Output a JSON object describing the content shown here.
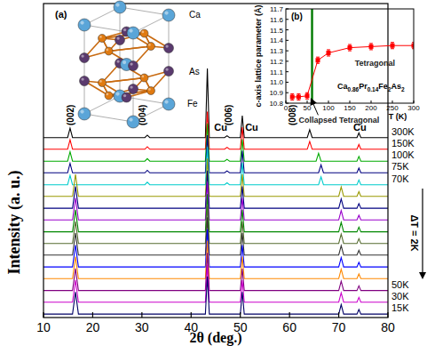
{
  "chart_data": [
    {
      "type": "line",
      "xlabel": "2θ (deg.)",
      "ylabel": "Intensity (a. u.)",
      "tick_labels": "x",
      "xlim": [
        10,
        80
      ],
      "xticks": [
        10,
        20,
        30,
        40,
        50,
        60,
        70,
        80
      ],
      "ylim": [
        0,
        100
      ],
      "x": [
        10,
        14.9,
        15.4,
        15.9,
        16.5,
        17.1,
        30.6,
        31.1,
        31.6,
        42.9,
        43.3,
        43.7,
        46.8,
        47.3,
        47.8,
        50.0,
        50.4,
        50.8,
        63.6,
        64.1,
        64.6,
        65.4,
        65.9,
        66.4,
        66.9,
        70.0,
        70.5,
        71.0,
        73.7,
        74.1,
        74.5,
        80
      ],
      "series": [
        {
          "name": "300K",
          "color": "#000000",
          "values": [
            57.3,
            57.3,
            60.3,
            57.3,
            57.3,
            57.3,
            57.3,
            58.1,
            57.3,
            57.3,
            79.3,
            57.3,
            57.3,
            57.9,
            57.3,
            57.3,
            64.3,
            57.3,
            57.3,
            59.8,
            57.3,
            57.3,
            57.3,
            57.3,
            57.3,
            57.3,
            57.3,
            57.3,
            57.3,
            58.8,
            57.3,
            57.3
          ]
        },
        {
          "name": "150K",
          "color": "#ff0000",
          "values": [
            53.6,
            53.6,
            56.6,
            53.6,
            53.6,
            53.6,
            53.6,
            54.4,
            53.6,
            53.6,
            65.6,
            53.6,
            53.6,
            54.2,
            53.6,
            53.6,
            60.6,
            53.6,
            53.6,
            56.1,
            53.6,
            53.6,
            53.6,
            53.6,
            53.6,
            53.6,
            53.6,
            53.6,
            53.6,
            55.1,
            53.6,
            53.6
          ]
        },
        {
          "name": "100K",
          "color": "#00aa00",
          "values": [
            49.8,
            49.8,
            52.8,
            49.8,
            49.8,
            49.8,
            49.8,
            50.6,
            49.8,
            49.8,
            61.8,
            49.8,
            49.8,
            50.4,
            49.8,
            49.8,
            56.8,
            49.8,
            49.8,
            49.8,
            49.8,
            49.8,
            52.3,
            49.8,
            49.8,
            49.8,
            49.8,
            49.8,
            49.8,
            51.3,
            49.8,
            49.8
          ]
        },
        {
          "name": "75K",
          "color": "#000080",
          "values": [
            46.1,
            46.1,
            49.1,
            46.1,
            46.1,
            46.1,
            46.1,
            46.9,
            46.1,
            46.1,
            58.1,
            46.1,
            46.1,
            46.7,
            46.1,
            46.1,
            53.1,
            46.1,
            46.1,
            46.1,
            46.1,
            46.1,
            46.1,
            48.6,
            46.1,
            46.1,
            46.1,
            46.1,
            46.1,
            47.6,
            46.1,
            46.1
          ]
        },
        {
          "name": "70K",
          "color": "#00cccc",
          "values": [
            42.3,
            42.3,
            45.3,
            42.3,
            42.3,
            42.3,
            42.3,
            43.1,
            42.3,
            42.3,
            54.3,
            42.3,
            42.3,
            42.9,
            42.3,
            42.3,
            49.3,
            42.3,
            42.3,
            42.3,
            42.3,
            42.3,
            42.3,
            44.8,
            42.3,
            42.3,
            42.3,
            42.3,
            42.3,
            43.8,
            42.3,
            42.3
          ]
        },
        {
          "color": "#999900",
          "values": [
            38.6,
            38.6,
            38.6,
            38.6,
            45.6,
            38.6,
            38.6,
            38.6,
            38.6,
            38.6,
            50.6,
            38.6,
            38.6,
            38.6,
            38.6,
            38.6,
            45.6,
            38.6,
            38.6,
            38.6,
            38.6,
            38.6,
            38.6,
            38.6,
            38.6,
            38.6,
            41.6,
            38.6,
            38.6,
            40.1,
            38.6,
            38.6
          ]
        },
        {
          "color": "#000080",
          "values": [
            34.8,
            34.8,
            34.8,
            34.8,
            41.8,
            34.8,
            34.8,
            34.8,
            34.8,
            34.8,
            46.8,
            34.8,
            34.8,
            34.8,
            34.8,
            34.8,
            41.8,
            34.8,
            34.8,
            34.8,
            34.8,
            34.8,
            34.8,
            34.8,
            34.8,
            34.8,
            37.8,
            34.8,
            34.8,
            36.3,
            34.8,
            34.8
          ]
        },
        {
          "color": "#9900cc",
          "values": [
            31.1,
            31.1,
            31.1,
            31.1,
            38.1,
            31.1,
            31.1,
            31.1,
            31.1,
            31.1,
            43.1,
            31.1,
            31.1,
            31.1,
            31.1,
            31.1,
            38.1,
            31.1,
            31.1,
            31.1,
            31.1,
            31.1,
            31.1,
            31.1,
            31.1,
            31.1,
            34.1,
            31.1,
            31.1,
            32.6,
            31.1,
            31.1
          ]
        },
        {
          "color": "#008800",
          "values": [
            27.3,
            27.3,
            27.3,
            27.3,
            34.3,
            27.3,
            27.3,
            27.3,
            27.3,
            27.3,
            39.3,
            27.3,
            27.3,
            27.3,
            27.3,
            27.3,
            34.3,
            27.3,
            27.3,
            27.3,
            27.3,
            27.3,
            27.3,
            27.3,
            27.3,
            27.3,
            30.3,
            27.3,
            27.3,
            28.8,
            27.3,
            27.3
          ]
        },
        {
          "color": "#556b2f",
          "values": [
            23.6,
            23.6,
            23.6,
            23.6,
            30.6,
            23.6,
            23.6,
            23.6,
            23.6,
            23.6,
            35.6,
            23.6,
            23.6,
            23.6,
            23.6,
            23.6,
            30.6,
            23.6,
            23.6,
            23.6,
            23.6,
            23.6,
            23.6,
            23.6,
            23.6,
            23.6,
            26.6,
            23.6,
            23.6,
            25.1,
            23.6,
            23.6
          ]
        },
        {
          "color": "#333333",
          "values": [
            19.9,
            19.9,
            19.9,
            19.9,
            26.9,
            19.9,
            19.9,
            19.9,
            19.9,
            19.9,
            31.9,
            19.9,
            19.9,
            19.9,
            19.9,
            19.9,
            26.9,
            19.9,
            19.9,
            19.9,
            19.9,
            19.9,
            19.9,
            19.9,
            19.9,
            19.9,
            22.9,
            19.9,
            19.9,
            21.4,
            19.9,
            19.9
          ]
        },
        {
          "color": "#0000ff",
          "values": [
            16.1,
            16.1,
            16.1,
            16.1,
            23.1,
            16.1,
            16.1,
            16.1,
            16.1,
            16.1,
            28.1,
            16.1,
            16.1,
            16.1,
            16.1,
            16.1,
            23.1,
            16.1,
            16.1,
            16.1,
            16.1,
            16.1,
            16.1,
            16.1,
            16.1,
            16.1,
            19.1,
            16.1,
            16.1,
            17.6,
            16.1,
            16.1
          ]
        },
        {
          "color": "#ff8800",
          "values": [
            12.4,
            12.4,
            12.4,
            12.4,
            19.4,
            12.4,
            12.4,
            12.4,
            12.4,
            12.4,
            24.4,
            12.4,
            12.4,
            12.4,
            12.4,
            12.4,
            19.4,
            12.4,
            12.4,
            12.4,
            12.4,
            12.4,
            12.4,
            12.4,
            12.4,
            12.4,
            15.4,
            12.4,
            12.4,
            13.9,
            12.4,
            12.4
          ]
        },
        {
          "name": "50K",
          "color": "#800080",
          "values": [
            8.6,
            8.6,
            8.6,
            8.6,
            15.6,
            8.6,
            8.6,
            8.6,
            8.6,
            8.6,
            20.6,
            8.6,
            8.6,
            8.6,
            8.6,
            8.6,
            15.6,
            8.6,
            8.6,
            8.6,
            8.6,
            8.6,
            8.6,
            8.6,
            8.6,
            8.6,
            11.6,
            8.6,
            8.6,
            10.1,
            8.6,
            8.6
          ]
        },
        {
          "name": "30K",
          "color": "#cc00cc",
          "values": [
            4.9,
            4.9,
            4.9,
            4.9,
            11.9,
            4.9,
            4.9,
            4.9,
            4.9,
            4.9,
            16.9,
            4.9,
            4.9,
            4.9,
            4.9,
            4.9,
            11.9,
            4.9,
            4.9,
            4.9,
            4.9,
            4.9,
            4.9,
            4.9,
            4.9,
            4.9,
            7.9,
            4.9,
            4.9,
            6.4,
            4.9,
            4.9
          ]
        },
        {
          "name": "15K",
          "color": "#000066",
          "values": [
            1.1,
            1.1,
            1.1,
            1.1,
            8.1,
            1.1,
            1.1,
            1.1,
            1.1,
            1.1,
            13.1,
            1.1,
            1.1,
            1.1,
            1.1,
            1.1,
            8.1,
            1.1,
            1.1,
            1.1,
            1.1,
            1.1,
            1.1,
            1.1,
            1.1,
            1.1,
            4.1,
            1.1,
            1.1,
            2.6,
            1.1,
            1.1
          ]
        }
      ],
      "hkl_labels": [
        {
          "text": "(002)",
          "x": 15.4,
          "y": 64.5
        },
        {
          "text": "(004)",
          "x": 30.0,
          "y": 64.5
        },
        {
          "text": "(006)",
          "x": 47.6,
          "y": 64.5
        },
        {
          "text": "(008)",
          "x": 60.5,
          "y": 64.5
        }
      ],
      "ref_labels": [
        {
          "text": "Cu",
          "x": 46.0,
          "y": 59.5
        },
        {
          "text": "Cu",
          "x": 52.3,
          "y": 59.5
        },
        {
          "text": "Cu",
          "x": 74.3,
          "y": 59.5
        }
      ],
      "sweep_label": "ΔT = 2K"
    },
    {
      "type": "line",
      "title": "(b)",
      "xlabel": "T (K)",
      "ylabel": "c-axis lattice parameter (Å)",
      "xlim": [
        0,
        300
      ],
      "xticks": [
        0,
        50,
        100,
        150,
        200,
        250,
        300
      ],
      "ylim": [
        10.8,
        11.7
      ],
      "yticks": [
        10.8,
        10.9,
        {
          "value": 11,
          "label": "11.0"
        },
        11.1,
        11.2,
        11.3,
        11.4,
        11.5,
        11.6,
        11.7
      ],
      "x": [
        15,
        30,
        50,
        75,
        100,
        150,
        200,
        250,
        300
      ],
      "series": [
        {
          "name": "Ca0.86Pr0.14Fe2As2",
          "color": "#ff0000",
          "marker": "square",
          "values": [
            10.86,
            10.86,
            10.87,
            11.21,
            11.28,
            11.33,
            11.34,
            11.35,
            11.35
          ],
          "errors": [
            0.03,
            0.03,
            0.03,
            0.03,
            0.03,
            0.03,
            0.03,
            0.03,
            0.03
          ]
        }
      ],
      "transition_band": [
        59,
        64
      ],
      "annotations": [
        {
          "text": "Tetragonal",
          "x": 162,
          "y": 11.16
        },
        {
          "text": "Collapsed Tetragonal",
          "x": 30,
          "y": 10.61,
          "target": [
            60,
            10.86
          ]
        }
      ]
    }
  ],
  "structure_inset": {
    "label": "(a)",
    "atoms": [
      {
        "label": "Ca",
        "color": "#5aa5d8"
      },
      {
        "label": "As",
        "color": "#5a3a6e"
      },
      {
        "label": "Fe",
        "color": "#e07a10"
      }
    ]
  }
}
